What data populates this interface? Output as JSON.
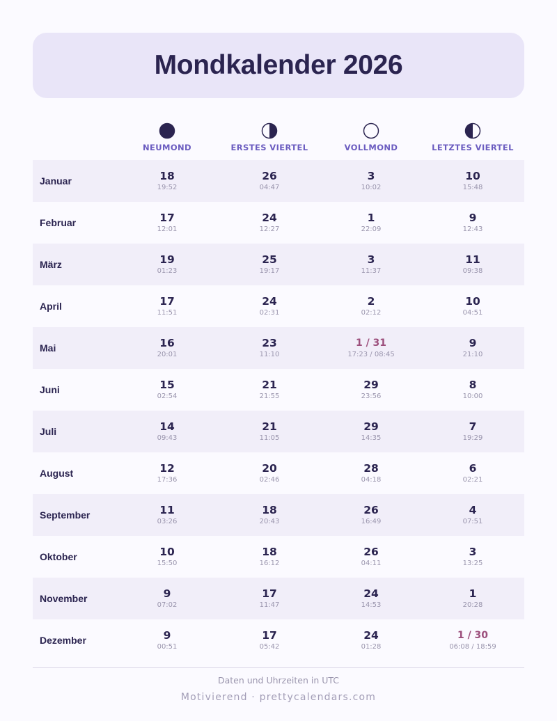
{
  "title": "Mondkalender 2026",
  "phases": [
    {
      "label": "NEUMOND",
      "icon": "new-moon"
    },
    {
      "label": "ERSTES VIERTEL",
      "icon": "first-quarter"
    },
    {
      "label": "VOLLMOND",
      "icon": "full-moon"
    },
    {
      "label": "LETZTES VIERTEL",
      "icon": "last-quarter"
    }
  ],
  "months": [
    {
      "name": "Januar",
      "cells": [
        {
          "day": "18",
          "time": "19:52"
        },
        {
          "day": "26",
          "time": "04:47"
        },
        {
          "day": "3",
          "time": "10:02"
        },
        {
          "day": "10",
          "time": "15:48"
        }
      ]
    },
    {
      "name": "Februar",
      "cells": [
        {
          "day": "17",
          "time": "12:01"
        },
        {
          "day": "24",
          "time": "12:27"
        },
        {
          "day": "1",
          "time": "22:09"
        },
        {
          "day": "9",
          "time": "12:43"
        }
      ]
    },
    {
      "name": "März",
      "cells": [
        {
          "day": "19",
          "time": "01:23"
        },
        {
          "day": "25",
          "time": "19:17"
        },
        {
          "day": "3",
          "time": "11:37"
        },
        {
          "day": "11",
          "time": "09:38"
        }
      ]
    },
    {
      "name": "April",
      "cells": [
        {
          "day": "17",
          "time": "11:51"
        },
        {
          "day": "24",
          "time": "02:31"
        },
        {
          "day": "2",
          "time": "02:12"
        },
        {
          "day": "10",
          "time": "04:51"
        }
      ]
    },
    {
      "name": "Mai",
      "cells": [
        {
          "day": "16",
          "time": "20:01"
        },
        {
          "day": "23",
          "time": "11:10"
        },
        {
          "day": "1 / 31",
          "time": "17:23 / 08:45",
          "highlight": true
        },
        {
          "day": "9",
          "time": "21:10"
        }
      ]
    },
    {
      "name": "Juni",
      "cells": [
        {
          "day": "15",
          "time": "02:54"
        },
        {
          "day": "21",
          "time": "21:55"
        },
        {
          "day": "29",
          "time": "23:56"
        },
        {
          "day": "8",
          "time": "10:00"
        }
      ]
    },
    {
      "name": "Juli",
      "cells": [
        {
          "day": "14",
          "time": "09:43"
        },
        {
          "day": "21",
          "time": "11:05"
        },
        {
          "day": "29",
          "time": "14:35"
        },
        {
          "day": "7",
          "time": "19:29"
        }
      ]
    },
    {
      "name": "August",
      "cells": [
        {
          "day": "12",
          "time": "17:36"
        },
        {
          "day": "20",
          "time": "02:46"
        },
        {
          "day": "28",
          "time": "04:18"
        },
        {
          "day": "6",
          "time": "02:21"
        }
      ]
    },
    {
      "name": "September",
      "cells": [
        {
          "day": "11",
          "time": "03:26"
        },
        {
          "day": "18",
          "time": "20:43"
        },
        {
          "day": "26",
          "time": "16:49"
        },
        {
          "day": "4",
          "time": "07:51"
        }
      ]
    },
    {
      "name": "Oktober",
      "cells": [
        {
          "day": "10",
          "time": "15:50"
        },
        {
          "day": "18",
          "time": "16:12"
        },
        {
          "day": "26",
          "time": "04:11"
        },
        {
          "day": "3",
          "time": "13:25"
        }
      ]
    },
    {
      "name": "November",
      "cells": [
        {
          "day": "9",
          "time": "07:02"
        },
        {
          "day": "17",
          "time": "11:47"
        },
        {
          "day": "24",
          "time": "14:53"
        },
        {
          "day": "1",
          "time": "20:28"
        }
      ]
    },
    {
      "name": "Dezember",
      "cells": [
        {
          "day": "9",
          "time": "00:51"
        },
        {
          "day": "17",
          "time": "05:42"
        },
        {
          "day": "24",
          "time": "01:28"
        },
        {
          "day": "1 / 30",
          "time": "06:08 / 18:59",
          "highlight": true
        }
      ]
    }
  ],
  "note": "Daten und Uhrzeiten in UTC",
  "footer": "Motivierend · prettycalendars.com",
  "colors": {
    "accent": "#6b5cc0",
    "highlight": "#9c4f7c",
    "text": "#2b2450",
    "header_bg": "#e9e5f8"
  }
}
